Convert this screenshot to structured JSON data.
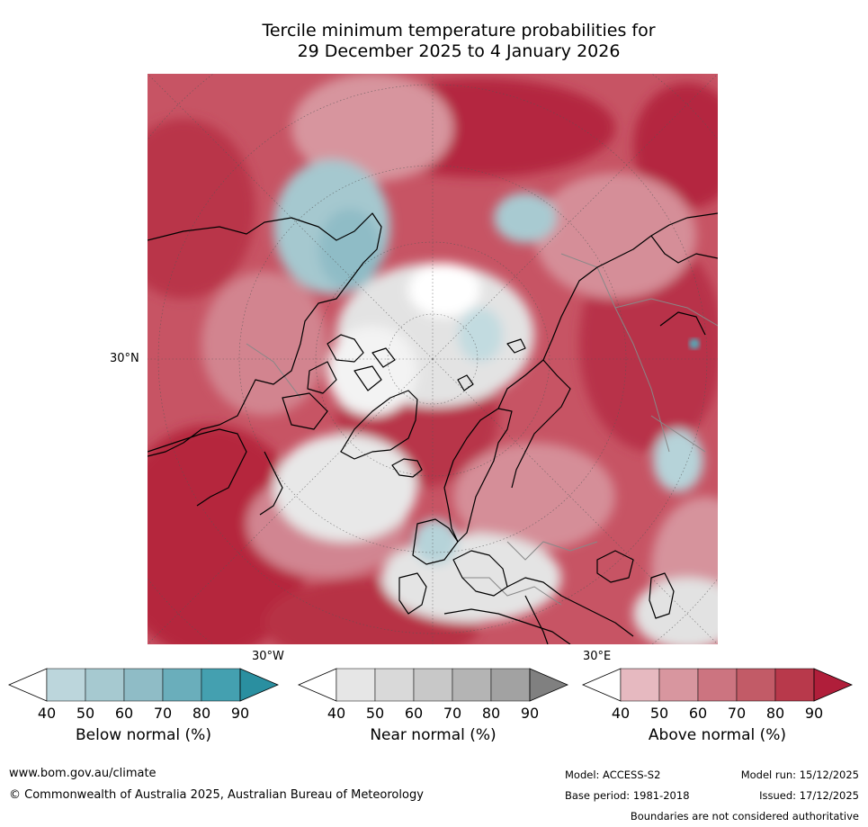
{
  "title": {
    "line1": "Tercile minimum temperature probabilities for",
    "line2": "29 December 2025 to 4 January 2026"
  },
  "map": {
    "labels": {
      "lat30": "30°N",
      "lon30w": "30°W",
      "lon30e": "30°E"
    }
  },
  "legend": {
    "below": {
      "title": "Below normal (%)",
      "ticks": [
        "40",
        "50",
        "60",
        "70",
        "80",
        "90"
      ],
      "colors": [
        "#ffffff",
        "#bcd6dc",
        "#a6c9d0",
        "#8fbcc6",
        "#6aaebb",
        "#44a0b0",
        "#2a8fa0"
      ]
    },
    "near": {
      "title": "Near normal (%)",
      "ticks": [
        "40",
        "50",
        "60",
        "70",
        "80",
        "90"
      ],
      "colors": [
        "#ffffff",
        "#e6e6e6",
        "#d9d9d9",
        "#c8c8c8",
        "#b4b4b4",
        "#a2a2a2",
        "#808080"
      ]
    },
    "above": {
      "title": "Above normal (%)",
      "ticks": [
        "40",
        "50",
        "60",
        "70",
        "80",
        "90"
      ],
      "colors": [
        "#ffffff",
        "#e6b9c0",
        "#d8969f",
        "#cc7480",
        "#c25b67",
        "#b8394b",
        "#b01e3a"
      ]
    }
  },
  "footer": {
    "url": "www.bom.gov.au/climate",
    "copyright": "© Commonwealth of Australia 2025, Australian Bureau of Meteorology",
    "model": "Model: ACCESS-S2",
    "model_run": "Model run: 15/12/2025",
    "base_period": "Base period: 1981-2018",
    "issued": "Issued: 17/12/2025",
    "disclaimer": "Boundaries are not considered authoritative"
  }
}
